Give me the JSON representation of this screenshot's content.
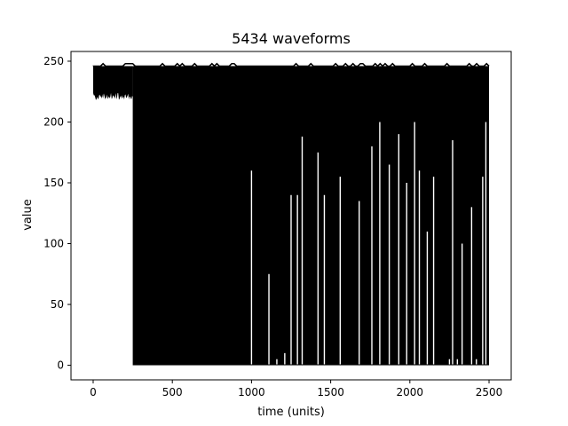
{
  "chart_data": {
    "type": "line",
    "title": "5434 waveforms",
    "xlabel": "time (units)",
    "ylabel": "value",
    "xlim": [
      -140,
      2640
    ],
    "ylim": [
      -12,
      258
    ],
    "xticks": [
      0,
      500,
      1000,
      1500,
      2000,
      2500
    ],
    "yticks": [
      0,
      50,
      100,
      150,
      200,
      250
    ],
    "grid": false,
    "legend": "none",
    "series_color": "#000000",
    "series_count": 5434,
    "envelope": {
      "x_start": 0,
      "x_end": 2500,
      "upper_value": 246,
      "pre_drop": {
        "x_end": 250,
        "min": 216,
        "max": 246
      },
      "floor_value": 0,
      "floor_x_start": 250,
      "floor_x_end": 2500
    },
    "gaps": [
      {
        "x": 1000,
        "min": 160
      },
      {
        "x": 1110,
        "min": 75
      },
      {
        "x": 1160,
        "min": 5
      },
      {
        "x": 1210,
        "min": 10
      },
      {
        "x": 1250,
        "min": 140
      },
      {
        "x": 1290,
        "min": 140
      },
      {
        "x": 1320,
        "min": 188
      },
      {
        "x": 1420,
        "min": 175
      },
      {
        "x": 1460,
        "min": 140
      },
      {
        "x": 1560,
        "min": 155
      },
      {
        "x": 1680,
        "min": 135
      },
      {
        "x": 1760,
        "min": 180
      },
      {
        "x": 1810,
        "min": 200
      },
      {
        "x": 1870,
        "min": 165
      },
      {
        "x": 1930,
        "min": 190
      },
      {
        "x": 1980,
        "min": 150
      },
      {
        "x": 2030,
        "min": 200
      },
      {
        "x": 2060,
        "min": 160
      },
      {
        "x": 2110,
        "min": 110
      },
      {
        "x": 2150,
        "min": 155
      },
      {
        "x": 2250,
        "min": 5
      },
      {
        "x": 2270,
        "min": 185
      },
      {
        "x": 2300,
        "min": 5
      },
      {
        "x": 2330,
        "min": 100
      },
      {
        "x": 2390,
        "min": 130
      },
      {
        "x": 2420,
        "min": 5
      },
      {
        "x": 2460,
        "min": 155
      },
      {
        "x": 2480,
        "min": 200
      }
    ]
  }
}
